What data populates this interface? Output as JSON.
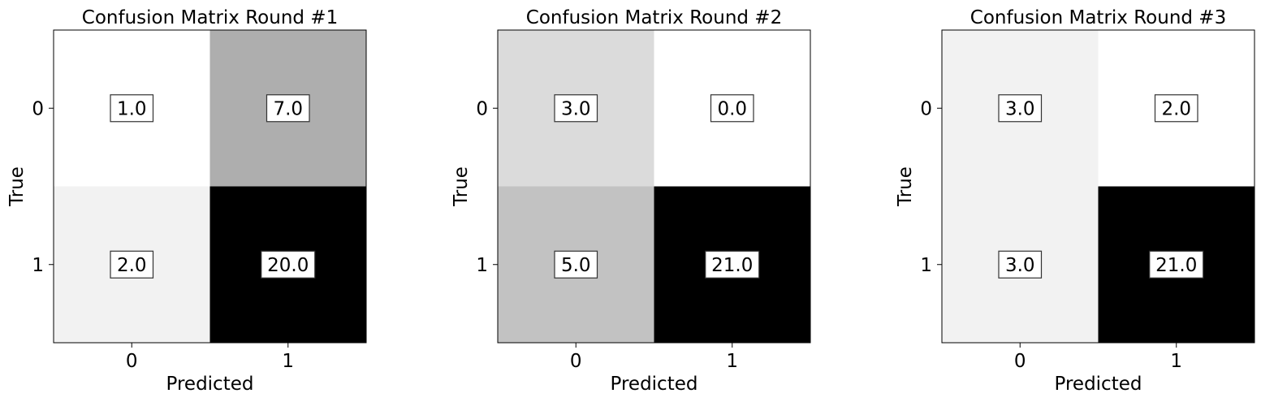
{
  "chart_data": [
    {
      "type": "heatmap",
      "title": "Confusion Matrix Round #1",
      "xlabel": "Predicted",
      "ylabel": "True",
      "x_ticks": [
        "0",
        "1"
      ],
      "y_ticks": [
        "0",
        "1"
      ],
      "colormap": "grayscale (white = low, black = high)",
      "values": [
        [
          1.0,
          7.0
        ],
        [
          2.0,
          20.0
        ]
      ],
      "value_labels": [
        [
          "1.0",
          "7.0"
        ],
        [
          "2.0",
          "20.0"
        ]
      ]
    },
    {
      "type": "heatmap",
      "title": "Confusion Matrix Round #2",
      "xlabel": "Predicted",
      "ylabel": "True",
      "x_ticks": [
        "0",
        "1"
      ],
      "y_ticks": [
        "0",
        "1"
      ],
      "colormap": "grayscale (white = low, black = high)",
      "values": [
        [
          3.0,
          0.0
        ],
        [
          5.0,
          21.0
        ]
      ],
      "value_labels": [
        [
          "3.0",
          "0.0"
        ],
        [
          "5.0",
          "21.0"
        ]
      ]
    },
    {
      "type": "heatmap",
      "title": "Confusion Matrix Round #3",
      "xlabel": "Predicted",
      "ylabel": "True",
      "x_ticks": [
        "0",
        "1"
      ],
      "y_ticks": [
        "0",
        "1"
      ],
      "colormap": "grayscale (white = low, black = high)",
      "values": [
        [
          3.0,
          2.0
        ],
        [
          3.0,
          21.0
        ]
      ],
      "value_labels": [
        [
          "3.0",
          "2.0"
        ],
        [
          "3.0",
          "21.0"
        ]
      ]
    }
  ]
}
